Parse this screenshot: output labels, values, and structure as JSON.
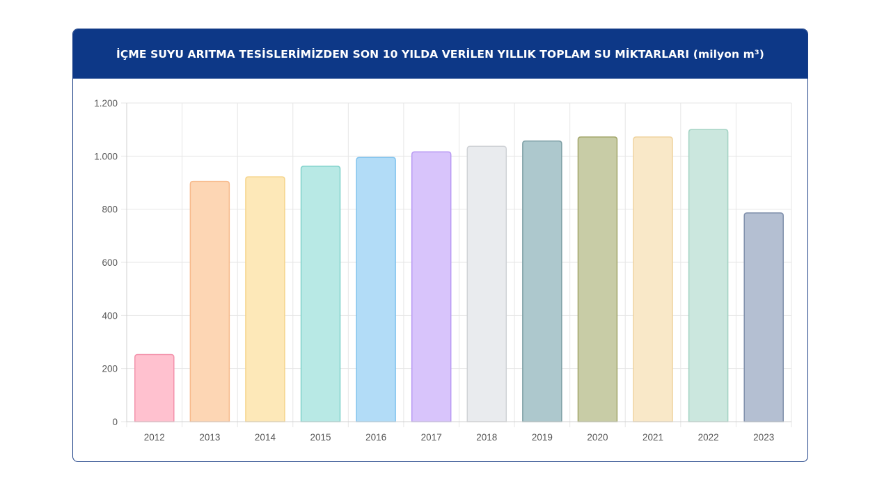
{
  "chart_data": {
    "type": "bar",
    "title": "İÇME SUYU ARITMA TESİSLERİMİZDEN SON 10 YILDA VERİLEN YILLIK TOPLAM SU MİKTARLARI (milyon m³)",
    "categories": [
      "2012",
      "2013",
      "2014",
      "2015",
      "2016",
      "2017",
      "2018",
      "2019",
      "2020",
      "2021",
      "2022",
      "2023"
    ],
    "values": [
      253,
      905,
      922,
      962,
      995,
      1016,
      1037,
      1057,
      1072,
      1072,
      1100,
      786
    ],
    "ylim": [
      0,
      1200
    ],
    "yticks": [
      0,
      200,
      400,
      600,
      800,
      1000,
      1200
    ],
    "ytick_labels": [
      "0",
      "200",
      "400",
      "600",
      "800",
      "1.000",
      "1.200"
    ],
    "xlabel": "",
    "ylabel": "",
    "grid": true,
    "legend": "none",
    "bar_colors": [
      "#ffc1cf",
      "#fdd6b4",
      "#fde8b8",
      "#b8e9e5",
      "#b2dcf7",
      "#d8c4fb",
      "#e9ebee",
      "#adc8cd",
      "#c8cca6",
      "#f9e8c8",
      "#cbe7de",
      "#b4bfd2"
    ],
    "bar_border_colors": [
      "#f393ac",
      "#f7b98a",
      "#f5d48a",
      "#80d2cb",
      "#80c2ed",
      "#b899f3",
      "#cfd2d6",
      "#7c9ea4",
      "#a2a66a",
      "#efd39f",
      "#a3d3c4",
      "#7f8fab"
    ]
  }
}
